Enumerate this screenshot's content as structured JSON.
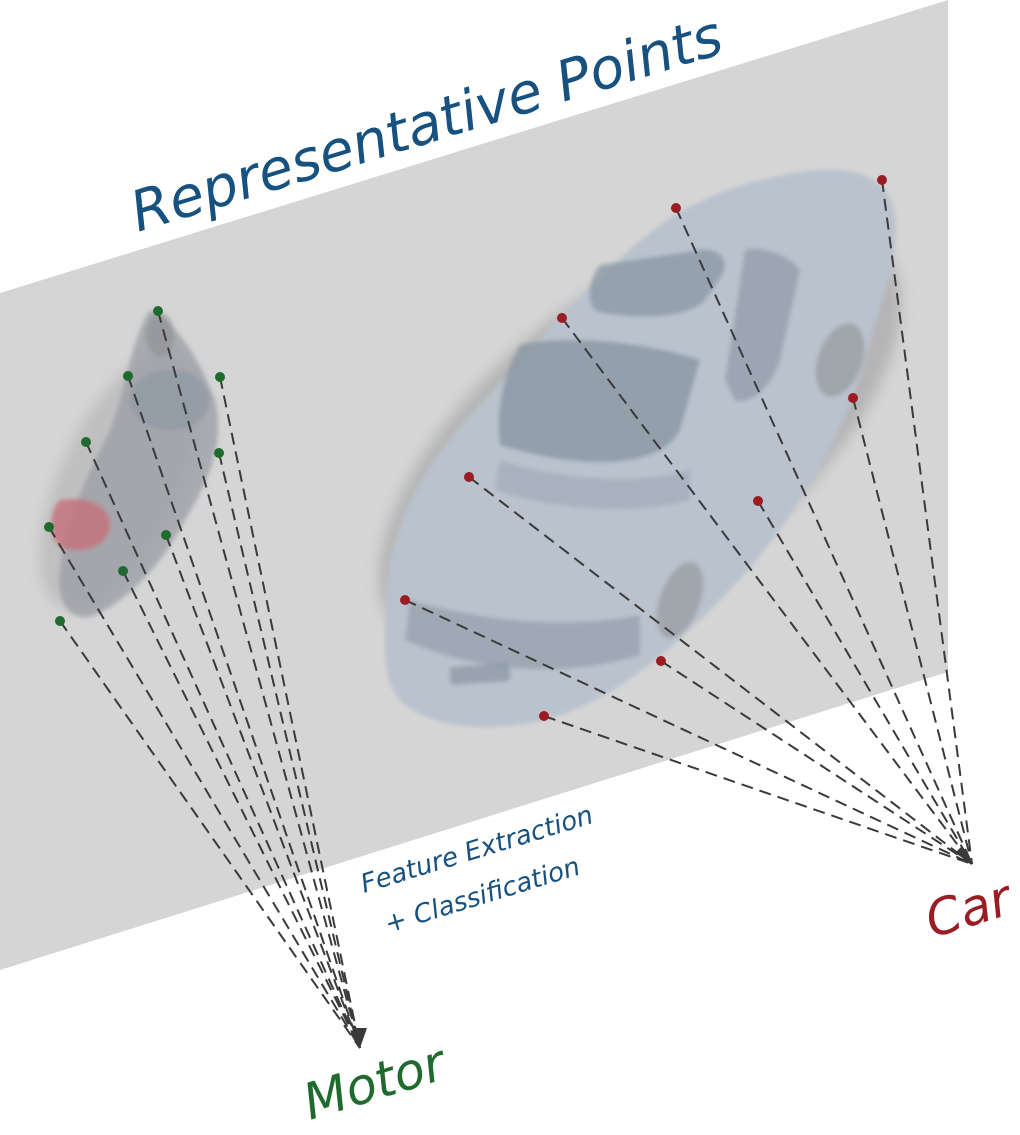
{
  "title": "Representative Points",
  "process_label": {
    "line1": "Feature Extraction",
    "line2": "+ Classification"
  },
  "classes": {
    "motor": "Motor",
    "car": "Car"
  },
  "colors": {
    "title": "#17517f",
    "process": "#17517f",
    "motor": "#1f6a2e",
    "car": "#9c1c23",
    "plane": "#d5d5d5",
    "car_body": "#b9c2cd",
    "car_glass": "#8a96a3",
    "car_shadow": "#8e8f92",
    "moto_body": "#9ea0a6",
    "rider_red": "#c6717a",
    "dash": "#3a3a3a"
  }
}
